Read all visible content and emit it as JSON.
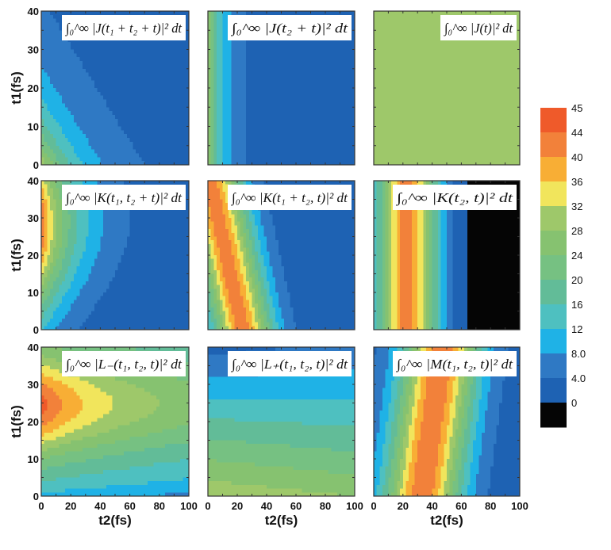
{
  "chart_data": {
    "type": "heatmap",
    "subtype": "filled-contour grid (3x3)",
    "xlabel": "t2(fs)",
    "ylabel": "t1(fs)",
    "xlim": [
      0,
      100
    ],
    "ylim": [
      0,
      40
    ],
    "xticks": [
      "0",
      "20",
      "40",
      "60",
      "80",
      "100"
    ],
    "yticks": [
      "0",
      "10",
      "20",
      "30",
      "40"
    ],
    "colorbar": {
      "labels": [
        "45",
        "44",
        "40",
        "36",
        "32",
        "28",
        "24",
        "20",
        "16",
        "12",
        "8.0",
        "4.0",
        "0"
      ],
      "colors": [
        "#ef5a2a",
        "#f2813a",
        "#f8ae35",
        "#f1e55c",
        "#9ec86a",
        "#86c270",
        "#76c182",
        "#62bc98",
        "#4ec0c0",
        "#1fb2e6",
        "#2f79c4",
        "#1e62b3",
        "#050505"
      ]
    },
    "panels": [
      {
        "id": "J_t1_t2",
        "title": "∫₀^∞ |J(t₁ + t₂ + t)|² dt",
        "row": 1,
        "col": 1,
        "description": "high (~28) at t1=t2=0, decreasing along t1+t2; ~4 beyond t1+t2≈45"
      },
      {
        "id": "J_t2",
        "title": "∫₀^∞ |J(t₂ + t)|² dt",
        "row": 1,
        "col": 2,
        "description": "vertical bands, ~28 at t2=0 falling to ~4 by t2≈30"
      },
      {
        "id": "J_t",
        "title": "∫₀^∞ |J(t)|² dt",
        "row": 1,
        "col": 3,
        "description": "constant ~30"
      },
      {
        "id": "K_t1_t2t",
        "title": "∫₀^∞ |K(t₁, t₂ + t)|² dt",
        "row": 2,
        "col": 1,
        "description": "max ~42 at t2=0, t1≈28; decays with t2"
      },
      {
        "id": "K_t1t2_t",
        "title": "∫₀^∞ |K(t₁ + t₂, t)|² dt",
        "row": 2,
        "col": 2,
        "description": "diagonal bands, max ~42 near t1+t2≈20"
      },
      {
        "id": "K_t2_t",
        "title": "∫₀^∞ |K(t₂, t)|² dt",
        "row": 2,
        "col": 3,
        "description": "vertical bands, max ~42 at t2≈20"
      },
      {
        "id": "Lminus",
        "title": "∫₀^∞ |L₋(t₁, t₂, t)|² dt",
        "row": 3,
        "col": 1,
        "description": "max ~42 at t2=0, t1≈25; broad yellow/green lobe"
      },
      {
        "id": "Lplus",
        "title": "∫₀^∞ |L₊(t₁, t₂, t)|² dt",
        "row": 3,
        "col": 2,
        "description": "near-horizontal bands, ~30 at t1=0 decreasing to ~4 at t1=40"
      },
      {
        "id": "M",
        "title": "∫₀^∞ |M(t₁, t₂, t)|² dt",
        "row": 3,
        "col": 3,
        "description": "tilted ridge, max ~42 near t2≈45"
      }
    ]
  }
}
